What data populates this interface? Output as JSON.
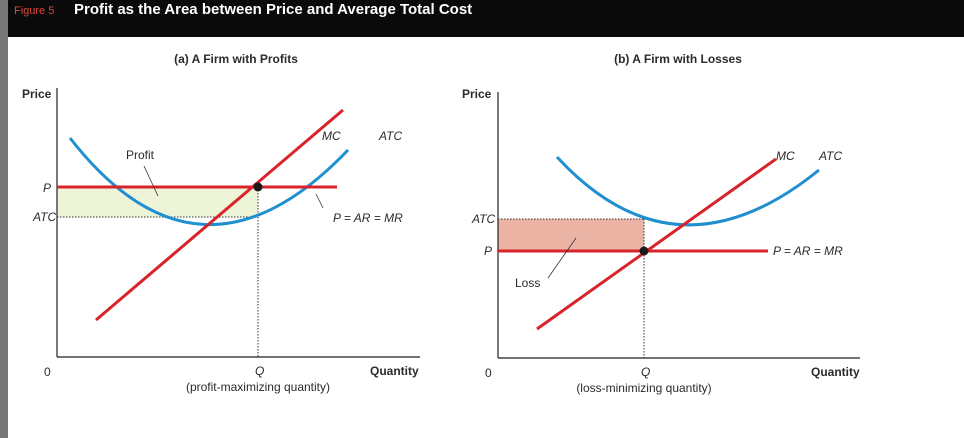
{
  "figure": {
    "number": "Figure 5",
    "title": "Profit as the Area between Price and Average Total Cost"
  },
  "panel_a": {
    "title": "(a) A Firm with Profits",
    "y_axis_label": "Price",
    "x_axis_label": "Quantity",
    "origin_label": "0",
    "p_tick": "P",
    "atc_tick": "ATC",
    "q_tick": "Q",
    "q_caption": "(profit-maximizing quantity)",
    "mc_label": "MC",
    "atc_label": "ATC",
    "demand_label": "P = AR = MR",
    "area_label": "Profit"
  },
  "panel_b": {
    "title": "(b) A Firm with Losses",
    "y_axis_label": "Price",
    "x_axis_label": "Quantity",
    "origin_label": "0",
    "p_tick": "P",
    "atc_tick": "ATC",
    "q_tick": "Q",
    "q_caption": "(loss-minimizing quantity)",
    "mc_label": "MC",
    "atc_label": "ATC",
    "demand_label": "P = AR = MR",
    "area_label": "Loss"
  },
  "colors": {
    "header_bg": "#0a0a0a",
    "figure_number": "#e0453a",
    "atc_curve": "#1f8fd0",
    "mc_curve": "#d8232a",
    "demand_line": "#d8232a",
    "profit_fill": "#eef4d8",
    "loss_fill": "#eab3a3"
  }
}
